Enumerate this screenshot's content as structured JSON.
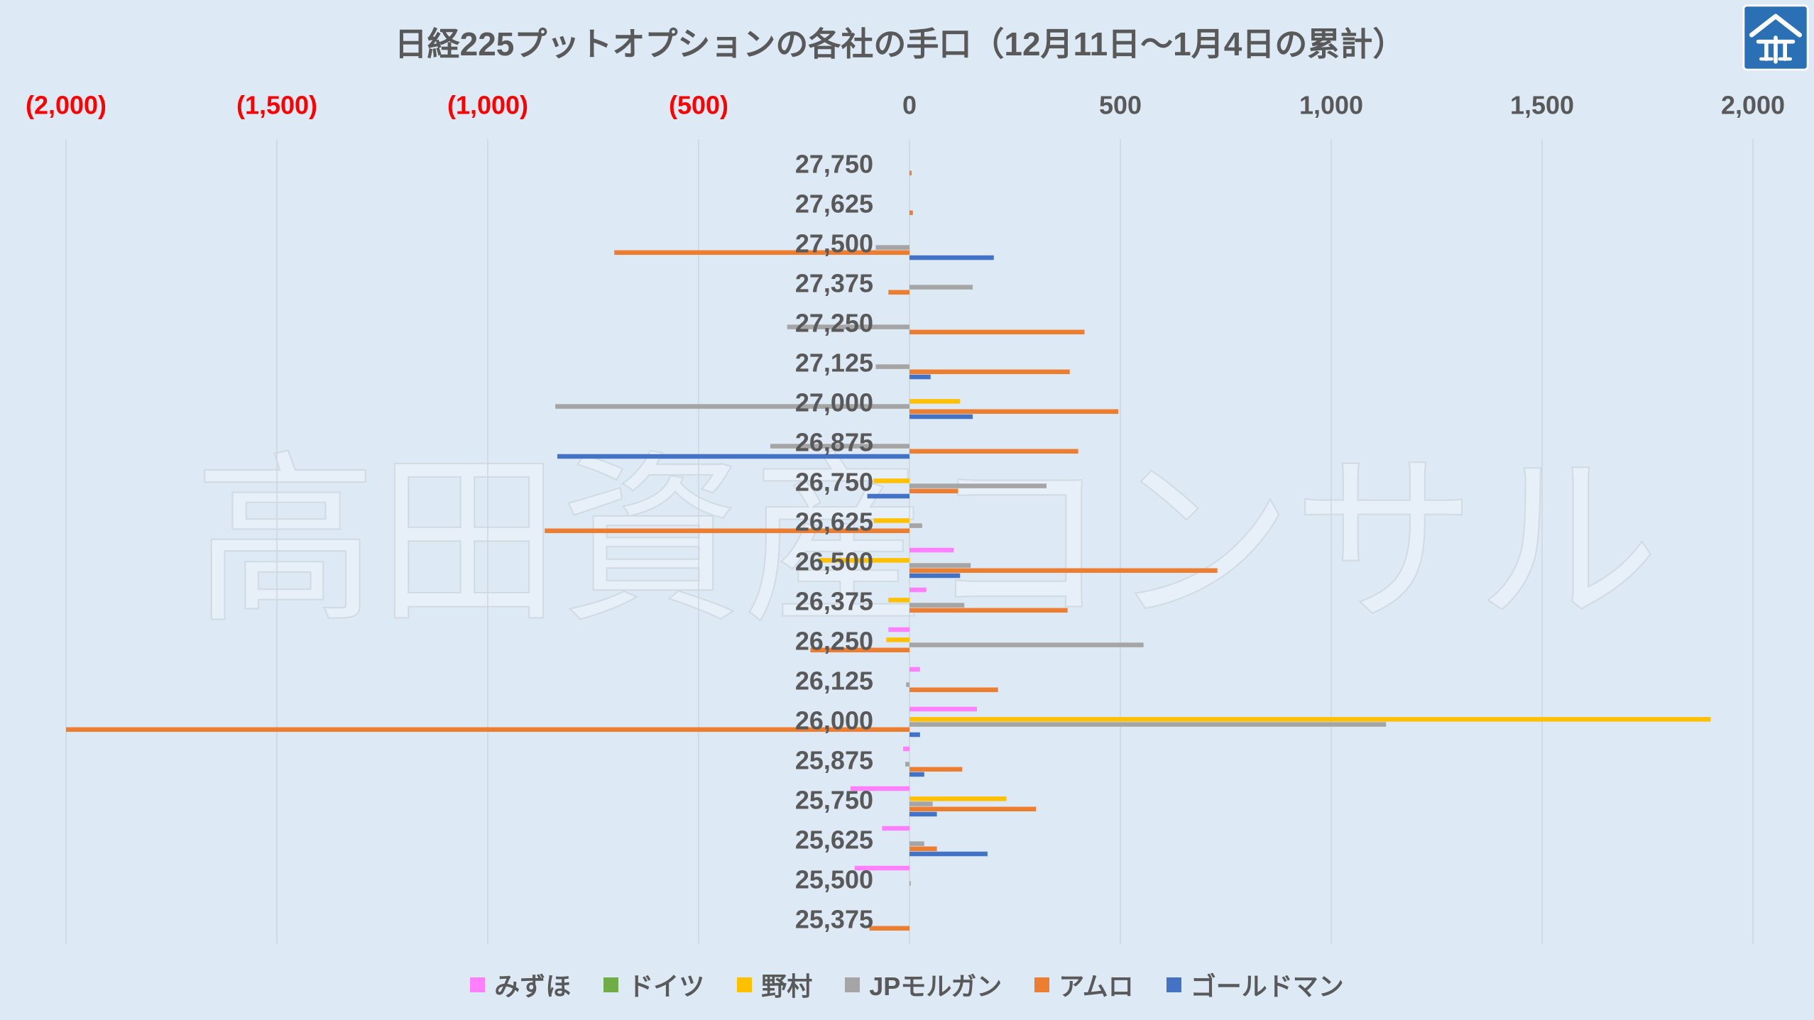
{
  "colors": {
    "background": "#dde9f5",
    "text": "#595959",
    "grid": "#cfd6dd"
  },
  "logo": {
    "icon": "house-emblem-logo-icon",
    "fill": "#2b70b5"
  },
  "watermark": "高田資産コンサル",
  "chart_data": {
    "type": "bar",
    "orientation": "horizontal",
    "title": "日経225プットオプションの各社の手口（12月11日～1月4日の累計）",
    "grid": true,
    "legend": {
      "position": "bottom"
    },
    "x_axis": {
      "position": "top",
      "min": -2000,
      "max": 2000,
      "ticks": [
        -2000,
        -1500,
        -1000,
        -500,
        0,
        500,
        1000,
        1500,
        2000
      ],
      "tick_labels": [
        "(2,000)",
        "(1,500)",
        "(1,000)",
        "(500)",
        "0",
        "500",
        "1,000",
        "1,500",
        "2,000"
      ],
      "negative_label_color": "#ff0000"
    },
    "categories": [
      "27,750",
      "27,625",
      "27,500",
      "27,375",
      "27,250",
      "27,125",
      "27,000",
      "26,875",
      "26,750",
      "26,625",
      "26,500",
      "26,375",
      "26,250",
      "26,125",
      "26,000",
      "25,875",
      "25,750",
      "25,625",
      "25,500",
      "25,375"
    ],
    "series": [
      {
        "name": "みずほ",
        "color": "#ff80ff",
        "values": [
          0,
          0,
          0,
          0,
          0,
          0,
          0,
          0,
          0,
          0,
          105,
          40,
          -50,
          25,
          160,
          -15,
          -140,
          -65,
          -130,
          0
        ]
      },
      {
        "name": "ドイツ",
        "color": "#70ad47",
        "values": [
          0,
          0,
          0,
          0,
          0,
          0,
          0,
          0,
          0,
          0,
          0,
          0,
          0,
          0,
          0,
          0,
          0,
          0,
          0,
          0
        ]
      },
      {
        "name": "野村",
        "color": "#ffc000",
        "values": [
          0,
          0,
          0,
          0,
          0,
          0,
          120,
          0,
          -85,
          -85,
          -215,
          -50,
          -55,
          0,
          1900,
          0,
          230,
          0,
          0,
          0
        ]
      },
      {
        "name": "JPモルガン",
        "color": "#a5a5a5",
        "values": [
          0,
          0,
          -80,
          150,
          -290,
          -80,
          -840,
          -330,
          325,
          30,
          145,
          130,
          555,
          -8,
          1130,
          -10,
          55,
          35,
          3,
          0
        ]
      },
      {
        "name": "アムロ",
        "color": "#ed7d31",
        "values": [
          5,
          8,
          -700,
          -50,
          415,
          380,
          495,
          400,
          115,
          -865,
          730,
          375,
          -235,
          210,
          -2000,
          125,
          300,
          65,
          0,
          -95
        ]
      },
      {
        "name": "ゴールドマン",
        "color": "#4472c4",
        "values": [
          0,
          0,
          200,
          0,
          0,
          50,
          150,
          -835,
          -100,
          0,
          120,
          0,
          0,
          0,
          25,
          35,
          65,
          185,
          0,
          0
        ]
      }
    ]
  }
}
